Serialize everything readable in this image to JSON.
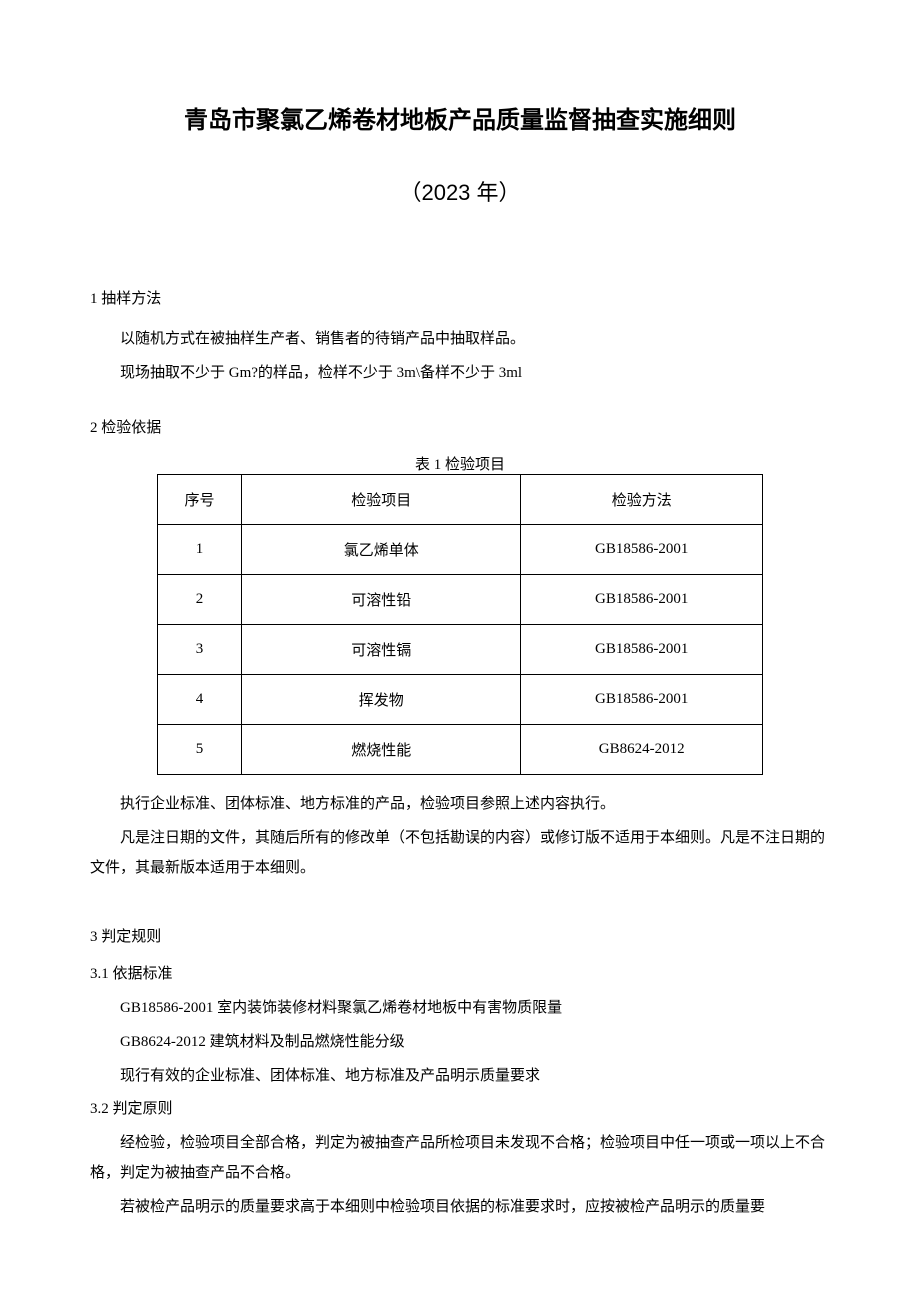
{
  "title": "青岛市聚氯乙烯卷材地板产品质量监督抽查实施细则",
  "year": "（2023 年）",
  "section1": {
    "heading": "1 抽样方法",
    "line1": "以随机方式在被抽样生产者、销售者的待销产品中抽取样品。",
    "line2": "现场抽取不少于 Gm?的样品，检样不少于 3m\\备样不少于 3ml"
  },
  "section2": {
    "heading": "2 检验依据",
    "table_caption": "表 1 检验项目",
    "table": {
      "background_color": "#ffffff",
      "border_color": "#000000",
      "font_size": 15,
      "columns": [
        "序号",
        "检验项目",
        "检验方法"
      ],
      "col_widths": [
        "14%",
        "46%",
        "40%"
      ],
      "rows": [
        [
          "1",
          "氯乙烯单体",
          "GB18586-2001"
        ],
        [
          "2",
          "可溶性铅",
          "GB18586-2001"
        ],
        [
          "3",
          "可溶性镉",
          "GB18586-2001"
        ],
        [
          "4",
          "挥发物",
          "GB18586-2001"
        ],
        [
          "5",
          "燃烧性能",
          "GB8624-2012"
        ]
      ]
    },
    "para1": "执行企业标准、团体标准、地方标准的产品，检验项目参照上述内容执行。",
    "para2": "凡是注日期的文件，其随后所有的修改单（不包括勘误的内容）或修订版不适用于本细则。凡是不注日期的文件，其最新版本适用于本细则。"
  },
  "section3": {
    "heading": "3 判定规则",
    "sub1": {
      "heading": "3.1 依据标准",
      "line1": "GB18586-2001 室内装饰装修材料聚氯乙烯卷材地板中有害物质限量",
      "line2": "GB8624-2012 建筑材料及制品燃烧性能分级",
      "line3": "现行有效的企业标准、团体标准、地方标准及产品明示质量要求"
    },
    "sub2": {
      "heading": "3.2 判定原则",
      "para1": "经检验，检验项目全部合格，判定为被抽查产品所检项目未发现不合格；检验项目中任一项或一项以上不合格，判定为被抽查产品不合格。",
      "para2": "若被检产品明示的质量要求高于本细则中检验项目依据的标准要求时，应按被检产品明示的质量要"
    }
  },
  "colors": {
    "background": "#ffffff",
    "text": "#000000",
    "table_border": "#000000"
  },
  "typography": {
    "title_fontsize": 24,
    "year_fontsize": 22,
    "body_fontsize": 15,
    "line_height": 2
  }
}
